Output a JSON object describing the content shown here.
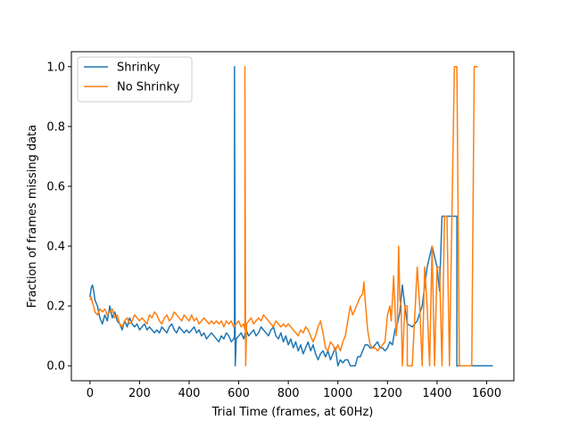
{
  "chart_data": {
    "type": "line",
    "xlabel": "Trial Time (frames, at 60Hz)",
    "ylabel": "Fraction of frames missing data",
    "xlim": [
      -75,
      1710
    ],
    "ylim": [
      -0.05,
      1.05
    ],
    "x_ticks": [
      0,
      200,
      400,
      600,
      800,
      1000,
      1200,
      1400,
      1600
    ],
    "x_tick_labels": [
      "0",
      "200",
      "400",
      "600",
      "800",
      "1000",
      "1200",
      "1400",
      "1600"
    ],
    "y_ticks": [
      0.0,
      0.2,
      0.4,
      0.6,
      0.8,
      1.0
    ],
    "y_tick_labels": [
      "0.0",
      "0.2",
      "0.4",
      "0.6",
      "0.8",
      "1.0"
    ],
    "grid": false,
    "legend_position": "top-left",
    "series": [
      {
        "name": "Shrinky",
        "color": "#1f77b4",
        "x": [
          0,
          5,
          10,
          15,
          20,
          30,
          40,
          50,
          60,
          70,
          80,
          90,
          100,
          110,
          120,
          130,
          140,
          150,
          160,
          170,
          180,
          190,
          200,
          210,
          220,
          230,
          240,
          250,
          260,
          270,
          280,
          290,
          300,
          310,
          320,
          330,
          340,
          350,
          360,
          370,
          380,
          390,
          400,
          410,
          420,
          430,
          440,
          450,
          460,
          470,
          480,
          490,
          500,
          510,
          520,
          530,
          540,
          550,
          560,
          570,
          580,
          583,
          583,
          586,
          590,
          600,
          610,
          620,
          630,
          640,
          650,
          660,
          670,
          680,
          690,
          700,
          710,
          720,
          730,
          740,
          750,
          760,
          770,
          780,
          790,
          800,
          810,
          820,
          830,
          840,
          850,
          860,
          870,
          880,
          890,
          900,
          910,
          920,
          930,
          940,
          950,
          960,
          970,
          980,
          990,
          1000,
          1010,
          1020,
          1030,
          1040,
          1050,
          1060,
          1070,
          1080,
          1090,
          1100,
          1110,
          1120,
          1130,
          1140,
          1150,
          1160,
          1170,
          1180,
          1190,
          1200,
          1210,
          1220,
          1230,
          1240,
          1250,
          1260,
          1270,
          1280,
          1300,
          1320,
          1340,
          1360,
          1380,
          1400,
          1410,
          1420,
          1440,
          1460,
          1480,
          1480,
          1500,
          1550,
          1600,
          1625
        ],
        "y": [
          0.23,
          0.26,
          0.27,
          0.25,
          0.22,
          0.2,
          0.16,
          0.14,
          0.17,
          0.15,
          0.2,
          0.16,
          0.18,
          0.15,
          0.14,
          0.12,
          0.15,
          0.13,
          0.16,
          0.14,
          0.13,
          0.14,
          0.12,
          0.13,
          0.14,
          0.12,
          0.13,
          0.12,
          0.11,
          0.12,
          0.11,
          0.13,
          0.12,
          0.11,
          0.13,
          0.14,
          0.12,
          0.11,
          0.13,
          0.12,
          0.11,
          0.12,
          0.11,
          0.12,
          0.13,
          0.11,
          0.12,
          0.1,
          0.11,
          0.09,
          0.1,
          0.11,
          0.1,
          0.09,
          0.08,
          0.1,
          0.09,
          0.11,
          0.1,
          0.08,
          0.09,
          0.1,
          1.0,
          0.0,
          0.09,
          0.1,
          0.11,
          0.09,
          0.12,
          0.1,
          0.11,
          0.12,
          0.1,
          0.11,
          0.13,
          0.12,
          0.11,
          0.1,
          0.12,
          0.13,
          0.1,
          0.09,
          0.11,
          0.08,
          0.1,
          0.07,
          0.09,
          0.06,
          0.08,
          0.05,
          0.07,
          0.04,
          0.06,
          0.08,
          0.05,
          0.07,
          0.04,
          0.02,
          0.04,
          0.05,
          0.03,
          0.05,
          0.02,
          0.04,
          0.06,
          0.0,
          0.02,
          0.01,
          0.02,
          0.02,
          0.0,
          0.0,
          0.0,
          0.03,
          0.03,
          0.05,
          0.07,
          0.07,
          0.06,
          0.06,
          0.07,
          0.08,
          0.06,
          0.06,
          0.05,
          0.06,
          0.08,
          0.07,
          0.12,
          0.14,
          0.18,
          0.27,
          0.2,
          0.14,
          0.13,
          0.15,
          0.2,
          0.33,
          0.4,
          0.33,
          0.25,
          0.5,
          0.5,
          0.5,
          0.5,
          0.0,
          0.0,
          0.0,
          0.0,
          0.0
        ]
      },
      {
        "name": "No Shrinky",
        "color": "#ff7f0e",
        "x": [
          0,
          5,
          10,
          15,
          20,
          30,
          40,
          50,
          60,
          70,
          80,
          90,
          100,
          110,
          120,
          130,
          140,
          150,
          160,
          170,
          180,
          190,
          200,
          210,
          220,
          230,
          240,
          250,
          260,
          270,
          280,
          290,
          300,
          310,
          320,
          330,
          340,
          350,
          360,
          370,
          380,
          390,
          400,
          410,
          420,
          430,
          440,
          450,
          460,
          470,
          480,
          490,
          500,
          510,
          520,
          530,
          540,
          550,
          560,
          570,
          580,
          590,
          600,
          610,
          620,
          625,
          625,
          628,
          632,
          640,
          650,
          660,
          670,
          680,
          690,
          700,
          710,
          720,
          730,
          740,
          750,
          760,
          770,
          780,
          790,
          800,
          810,
          820,
          830,
          840,
          850,
          860,
          870,
          880,
          890,
          900,
          910,
          920,
          930,
          940,
          950,
          960,
          970,
          980,
          990,
          1000,
          1010,
          1020,
          1030,
          1040,
          1050,
          1060,
          1070,
          1080,
          1090,
          1100,
          1105,
          1110,
          1120,
          1130,
          1140,
          1150,
          1160,
          1170,
          1180,
          1190,
          1200,
          1210,
          1215,
          1220,
          1225,
          1230,
          1235,
          1240,
          1245,
          1250,
          1255,
          1260,
          1270,
          1280,
          1280,
          1300,
          1320,
          1330,
          1340,
          1350,
          1360,
          1370,
          1380,
          1390,
          1400,
          1410,
          1420,
          1430,
          1440,
          1450,
          1460,
          1470,
          1480,
          1490,
          1500,
          1510,
          1520,
          1530,
          1540,
          1550,
          1555,
          1560,
          1565
        ],
        "y": [
          0.22,
          0.23,
          0.21,
          0.2,
          0.18,
          0.17,
          0.19,
          0.18,
          0.19,
          0.17,
          0.18,
          0.19,
          0.16,
          0.17,
          0.14,
          0.13,
          0.15,
          0.16,
          0.14,
          0.15,
          0.17,
          0.16,
          0.15,
          0.16,
          0.15,
          0.14,
          0.17,
          0.16,
          0.18,
          0.17,
          0.15,
          0.14,
          0.16,
          0.17,
          0.15,
          0.16,
          0.18,
          0.17,
          0.16,
          0.15,
          0.17,
          0.16,
          0.15,
          0.17,
          0.15,
          0.16,
          0.14,
          0.15,
          0.16,
          0.15,
          0.14,
          0.15,
          0.14,
          0.15,
          0.14,
          0.15,
          0.13,
          0.15,
          0.14,
          0.15,
          0.13,
          0.14,
          0.15,
          0.13,
          0.14,
          0.12,
          1.0,
          0.0,
          0.14,
          0.15,
          0.16,
          0.14,
          0.15,
          0.16,
          0.15,
          0.17,
          0.16,
          0.15,
          0.14,
          0.13,
          0.15,
          0.14,
          0.13,
          0.14,
          0.13,
          0.14,
          0.13,
          0.12,
          0.11,
          0.1,
          0.12,
          0.11,
          0.13,
          0.12,
          0.1,
          0.08,
          0.1,
          0.13,
          0.15,
          0.11,
          0.06,
          0.05,
          0.08,
          0.07,
          0.05,
          0.07,
          0.05,
          0.08,
          0.1,
          0.15,
          0.2,
          0.17,
          0.19,
          0.21,
          0.23,
          0.24,
          0.28,
          0.22,
          0.12,
          0.07,
          0.06,
          0.06,
          0.05,
          0.06,
          0.07,
          0.08,
          0.17,
          0.2,
          0.15,
          0.22,
          0.3,
          0.2,
          0.1,
          0.15,
          0.4,
          0.22,
          0.2,
          0.0,
          0.2,
          0.2,
          0.0,
          0.0,
          0.33,
          0.2,
          0.0,
          0.33,
          0.2,
          0.0,
          0.4,
          0.0,
          0.33,
          0.33,
          0.0,
          0.5,
          0.5,
          0.0,
          0.5,
          1.0,
          1.0,
          0.0,
          0.0,
          0.0,
          0.0,
          0.0,
          0.0,
          1.0,
          1.0,
          1.0,
          1.0
        ]
      }
    ]
  }
}
